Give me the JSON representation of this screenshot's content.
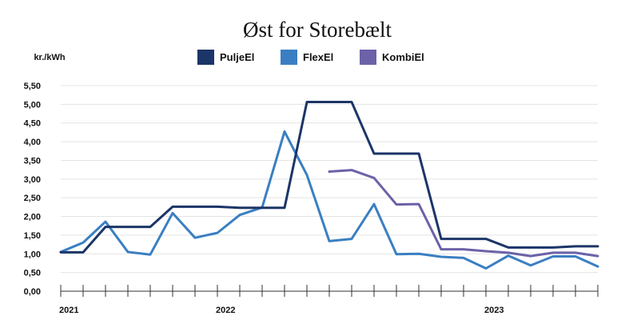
{
  "chart_data": {
    "type": "line",
    "title": "Øst for Storebælt",
    "ylabel": "kr./kWh",
    "xlabel": "",
    "ylim": [
      0,
      5.5
    ],
    "y_ticks": [
      "0,00",
      "0,50",
      "1,00",
      "1,50",
      "2,00",
      "2,50",
      "3,00",
      "3,50",
      "4,00",
      "4,50",
      "5,00",
      "5,50"
    ],
    "x_tick_labels": [
      "2021",
      "2022",
      "2023"
    ],
    "x_label_months": [
      0,
      7,
      19
    ],
    "x_months_count": 25,
    "grid": true,
    "legend_position": "top-center",
    "series": [
      {
        "name": "PuljeEl",
        "color": "#1c3568",
        "values": [
          1.04,
          1.04,
          1.72,
          1.72,
          1.72,
          2.26,
          2.26,
          2.26,
          2.23,
          2.23,
          2.23,
          5.06,
          5.06,
          5.06,
          3.68,
          3.68,
          3.68,
          1.4,
          1.4,
          1.4,
          1.17,
          1.17,
          1.17,
          1.2,
          1.2
        ]
      },
      {
        "name": "FlexEl",
        "color": "#3a7fc2",
        "values": [
          1.05,
          1.3,
          1.86,
          1.05,
          0.98,
          2.09,
          1.43,
          1.56,
          2.04,
          2.24,
          4.27,
          3.11,
          1.34,
          1.4,
          2.33,
          0.99,
          1.0,
          0.92,
          0.89,
          0.61,
          0.95,
          0.69,
          0.93,
          0.93,
          0.66
        ]
      },
      {
        "name": "KombiEl",
        "color": "#6b62a8",
        "values": [
          null,
          null,
          null,
          null,
          null,
          null,
          null,
          null,
          null,
          null,
          null,
          null,
          3.2,
          3.24,
          3.03,
          2.32,
          2.33,
          1.12,
          1.12,
          1.07,
          1.03,
          0.94,
          1.03,
          1.03,
          0.94
        ]
      }
    ]
  }
}
